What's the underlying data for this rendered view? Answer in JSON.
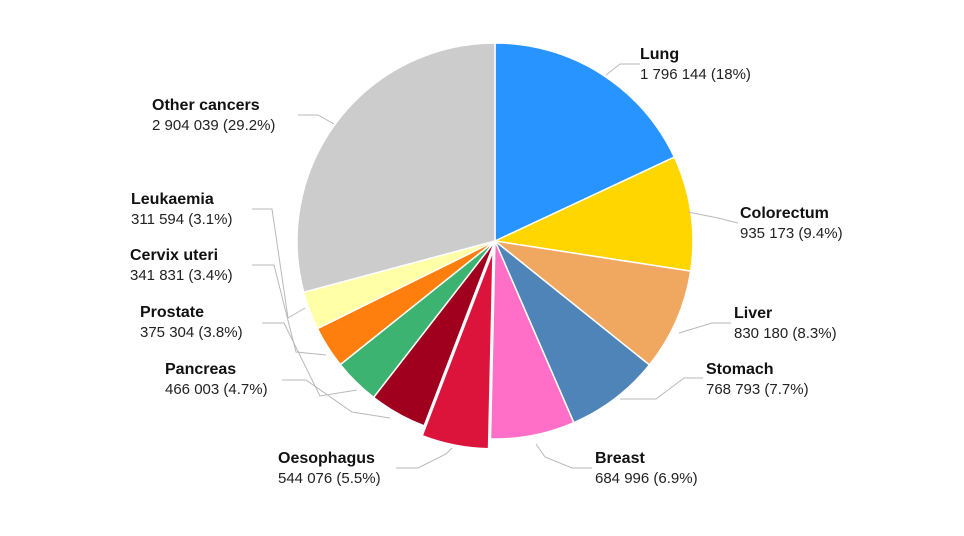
{
  "chart_data": {
    "type": "pie",
    "slices": [
      {
        "name": "Lung",
        "value": 1796144,
        "value_label": "1 796 144 (18%)",
        "percent": 18.0,
        "color": "#2894FF"
      },
      {
        "name": "Colorectum",
        "value": 935173,
        "value_label": "935 173 (9.4%)",
        "percent": 9.4,
        "color": "#FFD600"
      },
      {
        "name": "Liver",
        "value": 830180,
        "value_label": "830 180 (8.3%)",
        "percent": 8.3,
        "color": "#F0A860"
      },
      {
        "name": "Stomach",
        "value": 768793,
        "value_label": "768 793 (7.7%)",
        "percent": 7.7,
        "color": "#4F84B8"
      },
      {
        "name": "Breast",
        "value": 684996,
        "value_label": "684 996 (6.9%)",
        "percent": 6.9,
        "color": "#FF6EC7"
      },
      {
        "name": "Oesophagus",
        "value": 544076,
        "value_label": "544 076 (5.5%)",
        "percent": 5.5,
        "color": "#DC143C",
        "exploded": true
      },
      {
        "name": "Pancreas",
        "value": 466003,
        "value_label": "466 003 (4.7%)",
        "percent": 4.7,
        "color": "#A0001E"
      },
      {
        "name": "Prostate",
        "value": 375304,
        "value_label": "375 304 (3.8%)",
        "percent": 3.8,
        "color": "#3CB371"
      },
      {
        "name": "Cervix uteri",
        "value": 341831,
        "value_label": "341 831 (3.4%)",
        "percent": 3.4,
        "color": "#FF7F0E"
      },
      {
        "name": "Leukaemia",
        "value": 311594,
        "value_label": "311 594 (3.1%)",
        "percent": 3.1,
        "color": "#FFFFA8"
      },
      {
        "name": "Other cancers",
        "value": 2904039,
        "value_label": "2 904 039 (29.2%)",
        "percent": 29.2,
        "color": "#CCCCCC"
      }
    ],
    "start": "12 o'clock",
    "direction": "clockwise",
    "legend": "none"
  }
}
